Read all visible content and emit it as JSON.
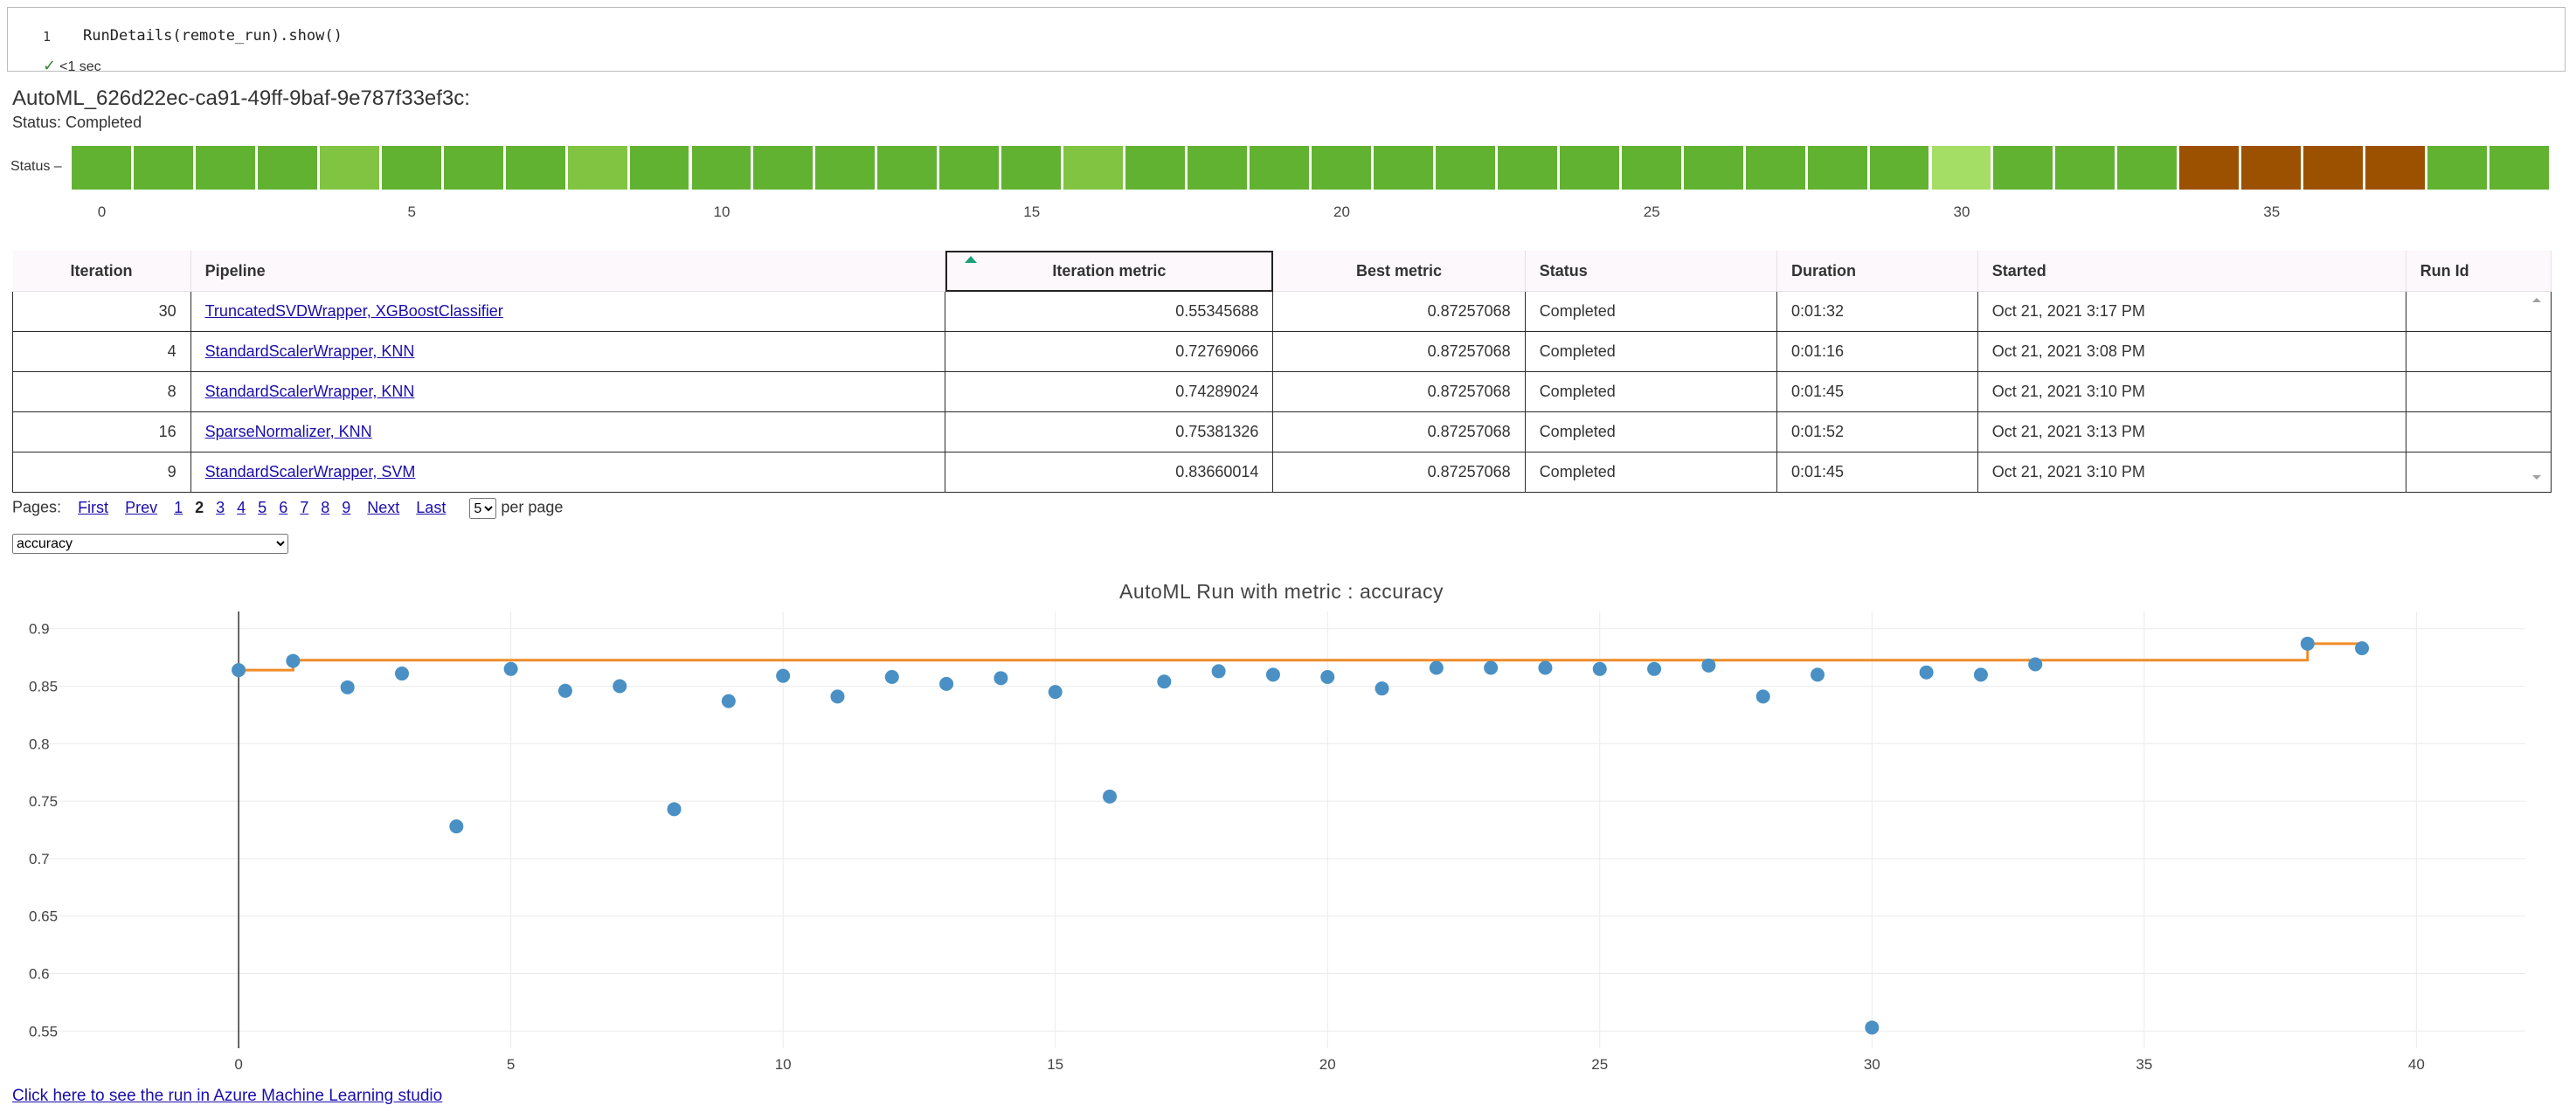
{
  "cell": {
    "line_number": "1",
    "code": "RunDetails(remote_run).show()",
    "exec_time": "<1 sec"
  },
  "run": {
    "title": "AutoML_626d22ec-ca91-49ff-9baf-9e787f33ef3c:",
    "status": "Status: Completed"
  },
  "status_strip": {
    "label": "Status",
    "colors": {
      "dark_green": "#62b232",
      "light_green": "#80c441",
      "pale_green": "#a5de64",
      "brown": "#9c5100"
    },
    "blocks": [
      "dark_green",
      "dark_green",
      "dark_green",
      "dark_green",
      "light_green",
      "dark_green",
      "dark_green",
      "dark_green",
      "light_green",
      "dark_green",
      "dark_green",
      "dark_green",
      "dark_green",
      "dark_green",
      "dark_green",
      "dark_green",
      "light_green",
      "dark_green",
      "dark_green",
      "dark_green",
      "dark_green",
      "dark_green",
      "dark_green",
      "dark_green",
      "dark_green",
      "dark_green",
      "dark_green",
      "dark_green",
      "dark_green",
      "dark_green",
      "pale_green",
      "dark_green",
      "dark_green",
      "dark_green",
      "brown",
      "brown",
      "brown",
      "brown",
      "dark_green",
      "dark_green"
    ],
    "ticks": [
      "0",
      "5",
      "10",
      "15",
      "20",
      "25",
      "30",
      "35"
    ]
  },
  "table": {
    "headers": {
      "iteration": "Iteration",
      "pipeline": "Pipeline",
      "iteration_metric": "Iteration metric",
      "best_metric": "Best metric",
      "status": "Status",
      "duration": "Duration",
      "started": "Started",
      "run_id": "Run Id"
    },
    "rows": [
      {
        "iteration": "30",
        "pipeline": "TruncatedSVDWrapper, XGBoostClassifier",
        "iteration_metric": "0.55345688",
        "best_metric": "0.87257068",
        "status": "Completed",
        "duration": "0:01:32",
        "started": "Oct 21, 2021 3:17 PM",
        "run_id": ""
      },
      {
        "iteration": "4",
        "pipeline": "StandardScalerWrapper, KNN",
        "iteration_metric": "0.72769066",
        "best_metric": "0.87257068",
        "status": "Completed",
        "duration": "0:01:16",
        "started": "Oct 21, 2021 3:08 PM",
        "run_id": ""
      },
      {
        "iteration": "8",
        "pipeline": "StandardScalerWrapper, KNN",
        "iteration_metric": "0.74289024",
        "best_metric": "0.87257068",
        "status": "Completed",
        "duration": "0:01:45",
        "started": "Oct 21, 2021 3:10 PM",
        "run_id": ""
      },
      {
        "iteration": "16",
        "pipeline": "SparseNormalizer, KNN",
        "iteration_metric": "0.75381326",
        "best_metric": "0.87257068",
        "status": "Completed",
        "duration": "0:01:52",
        "started": "Oct 21, 2021 3:13 PM",
        "run_id": ""
      },
      {
        "iteration": "9",
        "pipeline": "StandardScalerWrapper, SVM",
        "iteration_metric": "0.83660014",
        "best_metric": "0.87257068",
        "status": "Completed",
        "duration": "0:01:45",
        "started": "Oct 21, 2021 3:10 PM",
        "run_id": ""
      }
    ]
  },
  "pagination": {
    "label": "Pages:",
    "first": "First",
    "prev": "Prev",
    "pages": [
      "1",
      "2",
      "3",
      "4",
      "5",
      "6",
      "7",
      "8",
      "9"
    ],
    "current": "2",
    "next": "Next",
    "last": "Last",
    "per_page_value": "5",
    "per_page_label": "per page"
  },
  "metric_select": {
    "value": "accuracy"
  },
  "chart_data": {
    "type": "scatter",
    "title": "AutoML Run with metric : accuracy",
    "xlabel": "",
    "ylabel": "",
    "xlim": [
      -3.5,
      42
    ],
    "ylim": [
      0.535,
      0.915
    ],
    "xticks": [
      0,
      5,
      10,
      15,
      20,
      25,
      30,
      35,
      40
    ],
    "yticks": [
      0.55,
      0.6,
      0.65,
      0.7,
      0.75,
      0.8,
      0.85,
      0.9
    ],
    "grid": true,
    "legend": "none",
    "colors": {
      "points": "#4a90c4",
      "best_line": "#f08c28",
      "axis": "#333333",
      "grid": "#ebebeb"
    },
    "series": [
      {
        "kind": "points",
        "x": [
          0,
          1,
          2,
          3,
          4,
          5,
          6,
          7,
          8,
          9,
          10,
          11,
          12,
          13,
          14,
          15,
          16,
          17,
          18,
          19,
          20,
          21,
          22,
          23,
          24,
          25,
          26,
          27,
          28,
          29,
          30,
          31,
          32,
          33,
          38,
          39
        ],
        "y": [
          0.864,
          0.872,
          0.849,
          0.861,
          0.728,
          0.865,
          0.846,
          0.85,
          0.743,
          0.837,
          0.859,
          0.841,
          0.858,
          0.852,
          0.857,
          0.845,
          0.754,
          0.854,
          0.863,
          0.86,
          0.858,
          0.848,
          0.866,
          0.866,
          0.866,
          0.865,
          0.865,
          0.868,
          0.841,
          0.86,
          0.553,
          0.862,
          0.86,
          0.869,
          0.887,
          0.883
        ]
      },
      {
        "kind": "best-step",
        "x": [
          0,
          1,
          38,
          39
        ],
        "y": [
          0.864,
          0.8726,
          0.887,
          0.887
        ]
      }
    ]
  },
  "azure_link": "Click here to see the run in Azure Machine Learning studio"
}
